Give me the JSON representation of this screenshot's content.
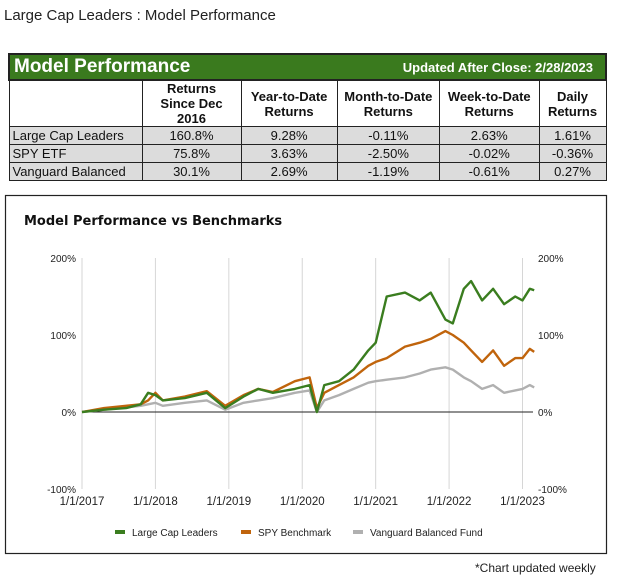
{
  "page_title": "Large Cap Leaders : Model Performance",
  "table": {
    "title": "Model Performance",
    "updated": "Updated After Close:  2/28/2023",
    "headers": [
      "",
      "Returns Since Dec 2016",
      "Year-to-Date Returns",
      "Month-to-Date Returns",
      "Week-to-Date Returns",
      "Daily Returns"
    ],
    "rows": [
      [
        "Large Cap Leaders",
        "160.8%",
        "9.28%",
        "-0.11%",
        "2.63%",
        "1.61%"
      ],
      [
        "SPY ETF",
        "75.8%",
        "3.63%",
        "-2.50%",
        "-0.02%",
        "-0.36%"
      ],
      [
        "Vanguard Balanced",
        "30.1%",
        "2.69%",
        "-1.19%",
        "-0.61%",
        "0.27%"
      ]
    ]
  },
  "chart_data": {
    "type": "line",
    "title": "Model Performance vs Benchmarks",
    "xlabel": "",
    "ylabel": "",
    "x_ticks": [
      "1/1/2017",
      "1/1/2018",
      "1/1/2019",
      "1/1/2020",
      "1/1/2021",
      "1/1/2022",
      "1/1/2023"
    ],
    "y_ticks": [
      "200%",
      "100%",
      "0%",
      "-100%"
    ],
    "ylim": [
      -100,
      200
    ],
    "xlim": [
      "2017-01-01",
      "2023-02-28"
    ],
    "grid": "vertical",
    "legend": "bottom",
    "x": [
      2017.0,
      2017.3,
      2017.6,
      2017.8,
      2017.9,
      2018.0,
      2018.1,
      2018.4,
      2018.7,
      2018.95,
      2019.2,
      2019.4,
      2019.6,
      2019.9,
      2020.1,
      2020.2,
      2020.3,
      2020.5,
      2020.7,
      2020.9,
      2021.0,
      2021.15,
      2021.4,
      2021.6,
      2021.75,
      2021.95,
      2022.05,
      2022.2,
      2022.3,
      2022.45,
      2022.6,
      2022.75,
      2022.9,
      2023.0,
      2023.1,
      2023.16
    ],
    "series": [
      {
        "name": "Large Cap Leaders",
        "color": "#3a7d1f",
        "values": [
          0,
          3,
          5,
          10,
          25,
          22,
          15,
          18,
          25,
          5,
          20,
          30,
          25,
          30,
          35,
          0,
          35,
          40,
          55,
          80,
          90,
          150,
          155,
          145,
          155,
          120,
          115,
          160,
          170,
          145,
          160,
          140,
          150,
          145,
          160,
          158
        ]
      },
      {
        "name": "SPY Benchmark",
        "color": "#c0640c",
        "values": [
          0,
          5,
          8,
          10,
          15,
          25,
          15,
          20,
          27,
          8,
          22,
          30,
          26,
          40,
          45,
          5,
          25,
          35,
          45,
          60,
          65,
          70,
          85,
          90,
          95,
          105,
          100,
          90,
          80,
          65,
          80,
          60,
          70,
          70,
          82,
          78
        ]
      },
      {
        "name": "Vanguard Balanced Fund",
        "color": "#b0b0b0",
        "values": [
          0,
          3,
          6,
          8,
          10,
          12,
          8,
          12,
          15,
          3,
          12,
          15,
          18,
          25,
          28,
          0,
          15,
          22,
          30,
          38,
          40,
          42,
          45,
          50,
          55,
          58,
          55,
          45,
          40,
          30,
          35,
          25,
          28,
          30,
          35,
          32
        ]
      }
    ]
  },
  "footnote": "*Chart updated weekly"
}
